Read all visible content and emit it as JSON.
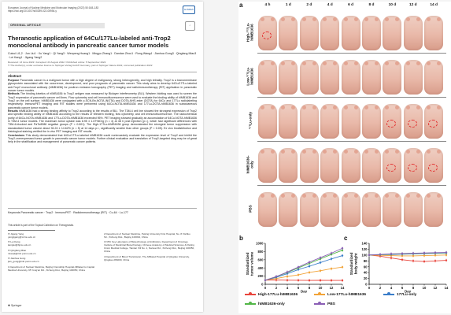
{
  "paper": {
    "journal_line1": "European Journal of Nuclear Medicine and Molecular Imaging (2022) 50:168–183",
    "journal_line2": "https://doi.org/10.1007/s00259-022-05954-y",
    "section_label": "ORIGINAL ARTICLE",
    "title": "Theranostic application of 64Cu/177Lu-labeled anti-Trop2 monoclonal antibody in pancreatic cancer tumor models",
    "authors": "Cuicui Li1,2 · Jun Liu1 · Xu Yang1 · Qi Yang3 · Wenpeng Huang1 · Mingyu Zhang1 · Dandan Zhou1 · Rong Wang4 · Jianhua Gong3 · Qingfang Miao3 · Lei Kang1 · Jigang Yang2",
    "received": "Received: 13 June 2022 / Accepted: 23 August 2022 / Published online: 5 September 2022",
    "copyright": "© The Author(s), under exclusive licence to Springer-Verlag GmbH Germany, part of Springer Nature 2022, corrected publication 2022",
    "abstract_heading": "Abstract",
    "abstract": [
      {
        "label": "Purpose",
        "text": " Pancreatic cancer is a malignant tumor with a high degree of malignancy, strong heterogeneity, and high lethality. Trop2 is a transmembrane glycoprotein associated with the occurrence, development, and poor prognosis of pancreatic cancer. This study aims to develop 64Cu/177Lu-labeled anti-Trop2 monoclonal antibody (hIMB1636) for positron emission tomography (PET) imaging and radioimmunotherapy (RIT) application in pancreatic cancer tumor models."
      },
      {
        "label": "Methods",
        "text": " The binding kinetics of hIMB1636 to Trop2 antigen was measured by Biolayer interferometry (BLI). Western blotting was used to screen the Trop2 expression of pancreatic cancer cell lines. Flow cytometry and cell immunofluorescence were used to evaluate the binding ability of hIMB1636 and Trop2 on the cell surface. hIMB1636 were conjugated with p-SCN-Bn-NOTA (NOTA) and DOTA-NHS-ester (DOTA) for 64Cu and 177Lu radiolabeling respectively. ImmunoPET imaging and RIT studies were performed using 64Cu-NOTA-hIMB1636 and 177Lu-DOTA-hIMB1636 in subcutaneous pancreatic cancer tumor models."
      },
      {
        "label": "Results",
        "text": " hIMB1636 had a strong binding affinity to Trop2 according to the results of BLI. The T3M-4 cell line showed the strongest expression of Trop2 and specific binding ability of hIMB1636 according to the results of Western blotting, flow cytometry, and cell immunofluorescence. The radiochemical purity of 64Cu-NOTA-hIMB1636 and 177Lu-DOTA-hIMB1636 exceeded 95%. PET imaging showed gradually an accumulation of 64Cu-NOTA-hIMB1636 in T3M-4 tumor models. The maximum tumor uptake was 8.95 ± 1.07%ID/g (n = 4) at 48 h post injection (p.i.), which had significant differences with T3M-4-blocked and PaTu8988 negative groups (P < 0.001). The High-177Lu-hIMB1636 group demonstrated the strongest tumor suppression with standardized tumor volume about 94.24 ± 14.62% (n = 5) at 14 days p.i., significantly smaller than other groups (P < 0.05). Ex vivo biodistribution and histological staining verified the in vivo PET imaging and RIT results."
      },
      {
        "label": "Conclusions",
        "text": " This study demonstrated that 64Cu/177Lu-labeled hIMB1636 could noninvasively evaluate the expression level of Trop2 and inhibit the Trop2-overexpressed tumor growth in pancreatic cancer tumor models. Further clinical evaluation and translation of Trop2-targeted drug may be of great help in the stratification and management of pancreatic cancer patients."
      }
    ],
    "keywords": "Keywords Pancreatic cancer · Trop2 · ImmunoPET · Radioimmunotherapy (RIT) · Cu-64 · Lu-177",
    "collection": "This article is part of the Topical Collection on Theragnostic.",
    "corr_left": [
      "✉ Jigang Yang\nyangjigang@ccmu.edu.cn",
      "✉ Lei Kang\nkanglei@bjmu.edu.cn",
      "✉ Qingfang Miao\nmiaoqf@imb.pumc.edu.cn",
      "✉ Jianhua Gong\njian_gong@imb.pumc.edu.cn",
      "1 Department of Nuclear Medicine, Beijing Friendship Hospital Affiliated to Capital Medical University, 95 Yong'an Rd., Xicheng Dist., Beijing 100050, China"
    ],
    "corr_right": [
      "2 Department of Nuclear Medicine, Peking University First Hospital, No. 8 Xishiku Str., Xicheng Dist., Beijing 100034, China",
      "3 NHC Key Laboratory of Biotechnology of Antibiotics, Department of Oncology, Institute of Medicinal Biotechnology, Chinese Academy of Medical Sciences & Peking Union Medical College, Tiantan Xili No. 1, Nanwei Rd., Xicheng Dist., Beijing 100050, China",
      "4 Department of Blood Transfusion, The Affiliated Hospital of Qingdao University, Qingdao 266000, China"
    ],
    "publisher": "Springer"
  },
  "figure": {
    "panel_a": "a",
    "panel_b": "b",
    "panel_c": "c",
    "timepoints": [
      "4 h",
      "1 d",
      "2 d",
      "4 d",
      "6 d",
      "8 d",
      "10 d",
      "12 d",
      "14 d"
    ],
    "groups": [
      "High-177Lu-hIMB1636",
      "Low-177Lu-hIMB1636",
      "177Lu-only",
      "hIMB1636-only",
      "PBS"
    ],
    "group_labels_display": [
      "High-¹⁷⁷Lu-\nhIMB1636",
      "Low-¹⁷⁷Lu-\nhIMB1636",
      "¹⁷⁷Lu-only",
      "hIMB1636-\nonly",
      "PBS"
    ],
    "legend": [
      "High-177Lu-hIMB1636",
      "Low-177Lu-hIMB1636",
      "177Lu-only",
      "hIMB1636-only",
      "PBS"
    ],
    "series_colors": [
      "#e8453c",
      "#f2a338",
      "#3a7dc9",
      "#53b648",
      "#8b5fb5"
    ]
  },
  "chart_data": [
    {
      "type": "line",
      "ylabel": "Standardized tumor volume",
      "xlabel": "Day",
      "x": [
        0,
        2,
        4,
        6,
        8,
        10,
        12,
        14
      ],
      "xticks": [
        0,
        2,
        4,
        6,
        8,
        10,
        12,
        14
      ],
      "ylim": [
        0,
        1000
      ],
      "yticks": [
        0,
        200,
        400,
        600,
        800,
        1000
      ],
      "series": [
        {
          "name": "High-177Lu-hIMB1636",
          "values": [
            100,
            105,
            100,
            98,
            95,
            96,
            95,
            94
          ]
        },
        {
          "name": "Low-177Lu-hIMB1636",
          "values": [
            100,
            140,
            190,
            230,
            290,
            330,
            380,
            420
          ]
        },
        {
          "name": "177Lu-only",
          "values": [
            100,
            170,
            260,
            360,
            440,
            530,
            620,
            700
          ]
        },
        {
          "name": "hIMB1636-only",
          "values": [
            100,
            185,
            290,
            400,
            510,
            620,
            730,
            830
          ]
        },
        {
          "name": "PBS",
          "values": [
            100,
            190,
            300,
            420,
            540,
            650,
            760,
            880
          ]
        }
      ]
    },
    {
      "type": "line",
      "ylabel": "Standardized body weight",
      "xlabel": "Day",
      "x": [
        0,
        2,
        4,
        6,
        8,
        10,
        12,
        14
      ],
      "xticks": [
        0,
        2,
        4,
        6,
        8,
        10,
        12,
        14
      ],
      "ylim": [
        0,
        140
      ],
      "yticks": [
        0,
        20,
        40,
        60,
        80,
        100,
        120,
        140
      ],
      "series": [
        {
          "name": "High-177Lu-hIMB1636",
          "values": [
            100,
            96,
            90,
            84,
            80,
            78,
            80,
            82
          ]
        },
        {
          "name": "Low-177Lu-hIMB1636",
          "values": [
            100,
            99,
            98,
            97,
            97,
            98,
            99,
            100
          ]
        },
        {
          "name": "177Lu-only",
          "values": [
            100,
            101,
            102,
            103,
            104,
            105,
            106,
            107
          ]
        },
        {
          "name": "hIMB1636-only",
          "values": [
            100,
            101,
            103,
            104,
            105,
            106,
            107,
            108
          ]
        },
        {
          "name": "PBS",
          "values": [
            100,
            102,
            104,
            105,
            106,
            107,
            108,
            109
          ]
        }
      ]
    }
  ]
}
